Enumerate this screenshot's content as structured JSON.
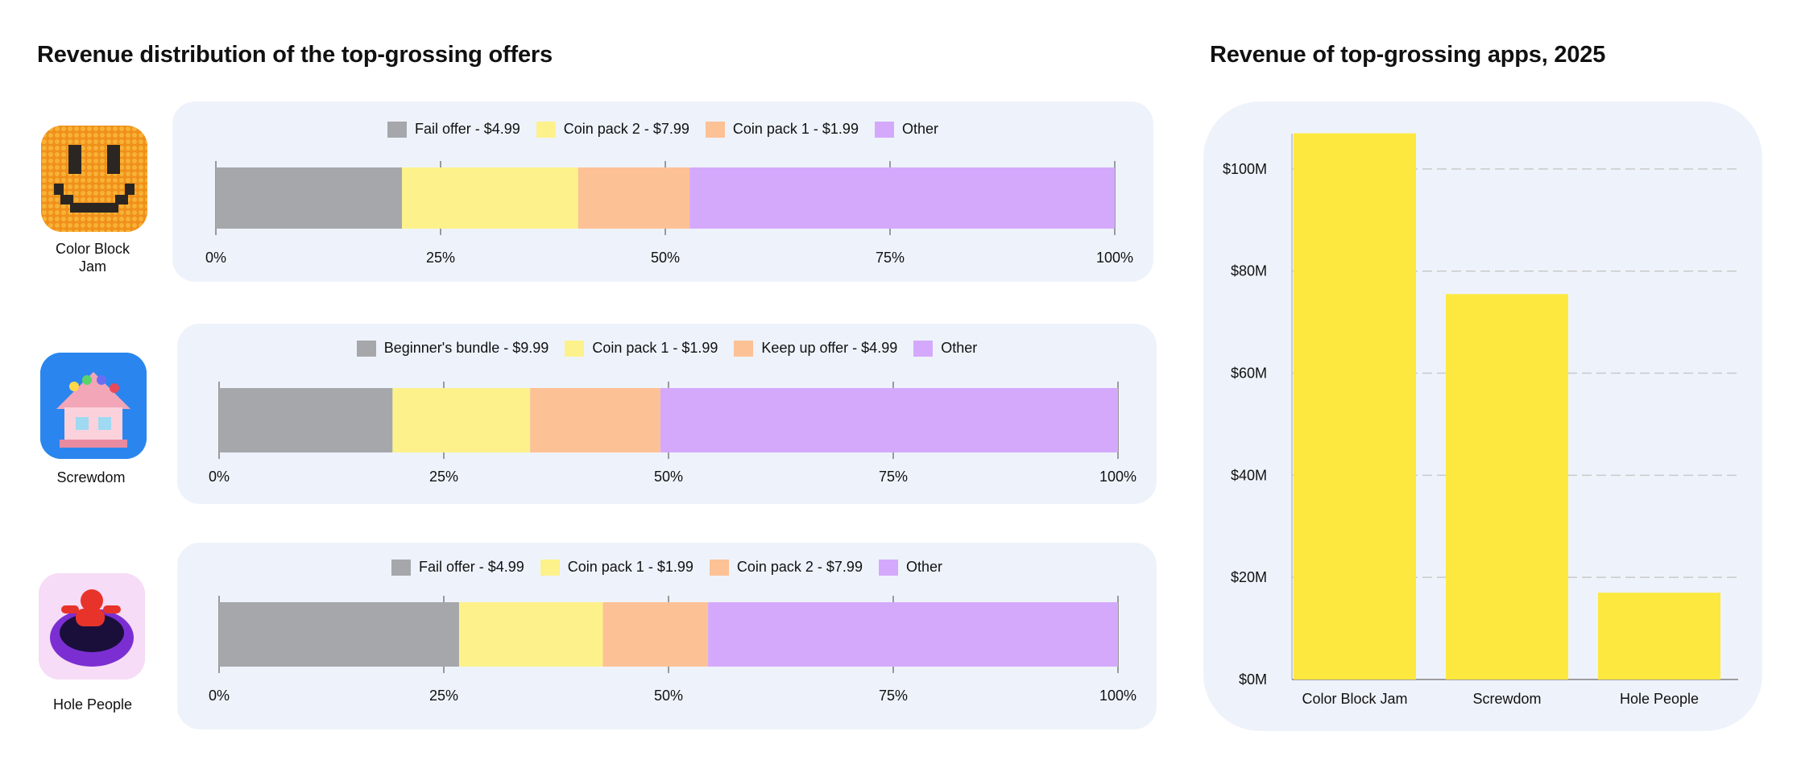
{
  "left_title": "Revenue distribution of the top-grossing offers",
  "right_title": "Revenue of top-grossing apps, 2025",
  "colors": {
    "gray": "#a5a7ab",
    "yellow": "#fdf18b",
    "orange": "#fdc196",
    "purple": "#d4a9fc",
    "bar": "#fde83f"
  },
  "apps": [
    {
      "name": "Color Block\nJam",
      "name_line1": "Color Block",
      "name_line2": "Jam",
      "icon": "color-block-jam-icon"
    },
    {
      "name_line1": "Screwdom",
      "name_line2": "",
      "icon": "screwdom-icon"
    },
    {
      "name_line1": "Hole People",
      "name_line2": "",
      "icon": "hole-people-icon"
    }
  ],
  "chart_data": [
    {
      "type": "bar",
      "orientation": "horizontal-stacked-100",
      "app": "Color Block Jam",
      "series": [
        {
          "name": "Fail offer - $4.99",
          "values": [
            20.7
          ],
          "color": "gray"
        },
        {
          "name": "Coin pack 2 - $7.99",
          "values": [
            19.6
          ],
          "color": "yellow"
        },
        {
          "name": "Coin pack 1 - $1.99",
          "values": [
            12.4
          ],
          "color": "orange"
        },
        {
          "name": "Other",
          "values": [
            47.3
          ],
          "color": "purple"
        }
      ],
      "ticks": [
        "0%",
        "25%",
        "50%",
        "75%",
        "100%"
      ],
      "xlim": [
        0,
        100
      ]
    },
    {
      "type": "bar",
      "orientation": "horizontal-stacked-100",
      "app": "Screwdom",
      "series": [
        {
          "name": "Beginner's bundle - $9.99",
          "values": [
            19.3
          ],
          "color": "gray"
        },
        {
          "name": "Coin pack 1 - $1.99",
          "values": [
            15.3
          ],
          "color": "yellow"
        },
        {
          "name": "Keep up offer - $4.99",
          "values": [
            14.5
          ],
          "color": "orange"
        },
        {
          "name": "Other",
          "values": [
            50.9
          ],
          "color": "purple"
        }
      ],
      "ticks": [
        "0%",
        "25%",
        "50%",
        "75%",
        "100%"
      ],
      "xlim": [
        0,
        100
      ]
    },
    {
      "type": "bar",
      "orientation": "horizontal-stacked-100",
      "app": "Hole People",
      "series": [
        {
          "name": "Fail offer - $4.99",
          "values": [
            26.7
          ],
          "color": "gray"
        },
        {
          "name": "Coin pack 1 - $1.99",
          "values": [
            16.0
          ],
          "color": "yellow"
        },
        {
          "name": "Coin pack 2 - $7.99",
          "values": [
            11.7
          ],
          "color": "orange"
        },
        {
          "name": "Other",
          "values": [
            45.6
          ],
          "color": "purple"
        }
      ],
      "ticks": [
        "0%",
        "25%",
        "50%",
        "75%",
        "100%"
      ],
      "xlim": [
        0,
        100
      ]
    },
    {
      "type": "bar",
      "title": "Revenue of top-grossing apps, 2025",
      "categories": [
        "Color Block Jam",
        "Screwdom",
        "Hole People"
      ],
      "values": [
        107,
        75.5,
        17
      ],
      "ylabel": "",
      "xlabel": "",
      "ylim": [
        0,
        110
      ],
      "yticks": [
        0,
        20,
        40,
        60,
        80,
        100
      ],
      "ytick_labels": [
        "$0M",
        "$20M",
        "$40M",
        "$60M",
        "$80M",
        "$100M"
      ],
      "grid": true
    }
  ]
}
